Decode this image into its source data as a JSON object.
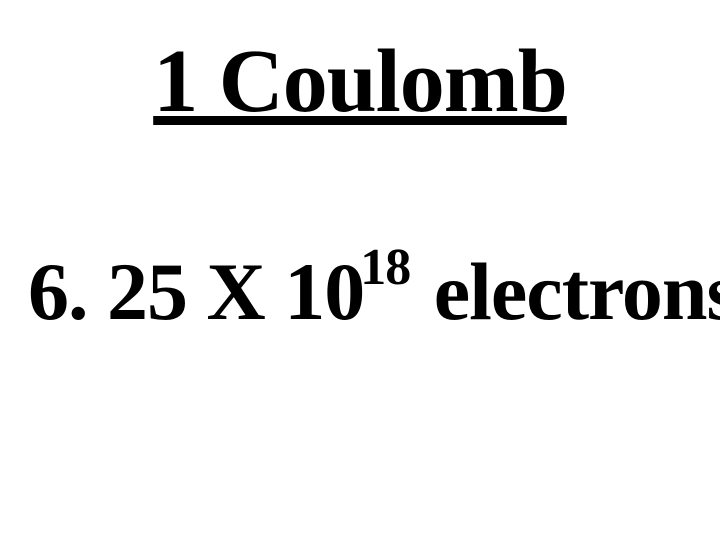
{
  "title": "1 Coulomb",
  "equation": {
    "prefix": "6. 25 X 10",
    "exponent": "18",
    "suffix": " electrons"
  },
  "colors": {
    "background": "#ffffff",
    "text": "#000000"
  },
  "typography": {
    "font_family": "Times New Roman",
    "title_fontsize": 90,
    "equation_fontsize": 82,
    "exponent_fontsize": 52,
    "font_weight": "bold",
    "title_underline": true
  }
}
